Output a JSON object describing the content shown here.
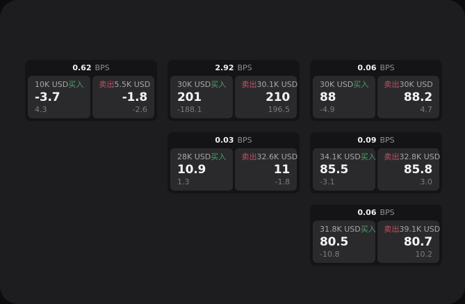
{
  "labels": {
    "bps": "BPS",
    "buy": "买入",
    "sell": "卖出"
  },
  "colors": {
    "surface": "#1d1d1f",
    "card": "#141416",
    "panel": "#2a2a2c",
    "buy_green": "#46a369",
    "sell_red": "#c15162",
    "label": "#a7a7ac",
    "sub": "#7c7c81",
    "muted": "#909095"
  },
  "cards": [
    {
      "col": 0,
      "row": 0,
      "bps": "0.62",
      "buy": {
        "size": "10K USD",
        "value": "-3.7",
        "sub": "4.3"
      },
      "sell": {
        "size": "5.5K USD",
        "value": "-1.8",
        "sub": "-2.6"
      }
    },
    {
      "col": 1,
      "row": 0,
      "bps": "2.92",
      "buy": {
        "size": "30K USD",
        "value": "201",
        "sub": "-188.1"
      },
      "sell": {
        "size": "30.1K USD",
        "value": "210",
        "sub": "196.5"
      }
    },
    {
      "col": 2,
      "row": 0,
      "bps": "0.06",
      "buy": {
        "size": "30K USD",
        "value": "88",
        "sub": "-4.9"
      },
      "sell": {
        "size": "30K USD",
        "value": "88.2",
        "sub": "4.7"
      }
    },
    {
      "col": 1,
      "row": 1,
      "bps": "0.03",
      "buy": {
        "size": "28K USD",
        "value": "10.9",
        "sub": "1.3"
      },
      "sell": {
        "size": "32.6K USD",
        "value": "11",
        "sub": "-1.8"
      }
    },
    {
      "col": 2,
      "row": 1,
      "bps": "0.09",
      "buy": {
        "size": "34.1K USD",
        "value": "85.5",
        "sub": "-3.1"
      },
      "sell": {
        "size": "32.8K USD",
        "value": "85.8",
        "sub": "3.0"
      }
    },
    {
      "col": 2,
      "row": 2,
      "bps": "0.06",
      "buy": {
        "size": "31.8K USD",
        "value": "80.5",
        "sub": "-10.8"
      },
      "sell": {
        "size": "39.1K USD",
        "value": "80.7",
        "sub": "10.2"
      }
    }
  ]
}
